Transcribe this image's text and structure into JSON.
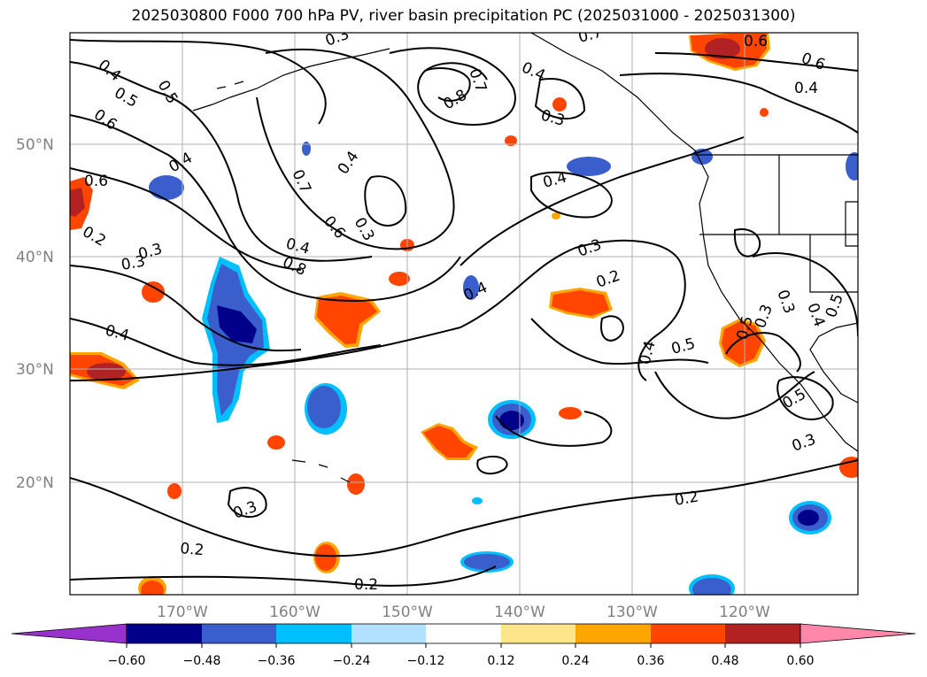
{
  "title": "2025030800 F000 700 hPa PV, river basin precipitation PC (2025031000 - 2025031300)",
  "lat_labels": [
    "50°N",
    "40°N",
    "30°N",
    "20°N"
  ],
  "lon_labels": [
    "170°W",
    "160°W",
    "150°W",
    "140°W",
    "130°W",
    "120°W"
  ],
  "colorbar": {
    "ticks": [
      "−0.60",
      "−0.48",
      "−0.36",
      "−0.24",
      "−0.12",
      "0.12",
      "0.24",
      "0.36",
      "0.48",
      "0.60"
    ],
    "colors": [
      "#9932cc",
      "#00008b",
      "#3a5fcd",
      "#00bfff",
      "#b0e2ff",
      "#ffffff",
      "#fde68a",
      "#ffa500",
      "#ff4500",
      "#b22222",
      "#ff88aa"
    ]
  },
  "contour_labels": [
    "0.3",
    "0.7",
    "0.6",
    "0.4",
    "0.5",
    "0.8",
    "0.7",
    "0.4",
    "0.6",
    "0.4",
    "0.3",
    "0.6",
    "0.4",
    "0.7",
    "0.4",
    "0.5",
    "0.4",
    "0.6",
    "0.2",
    "0.3",
    "0.8",
    "0.6",
    "0.3",
    "0.3",
    "0.4",
    "0.2",
    "0.3",
    "0.4",
    "0.5",
    "0.5",
    "0.3",
    "0.4",
    "0.5",
    "0.5",
    "0.3",
    "0.4",
    "0.2",
    "0.3",
    "0.2",
    "0.2",
    "0.4",
    "0.3"
  ]
}
